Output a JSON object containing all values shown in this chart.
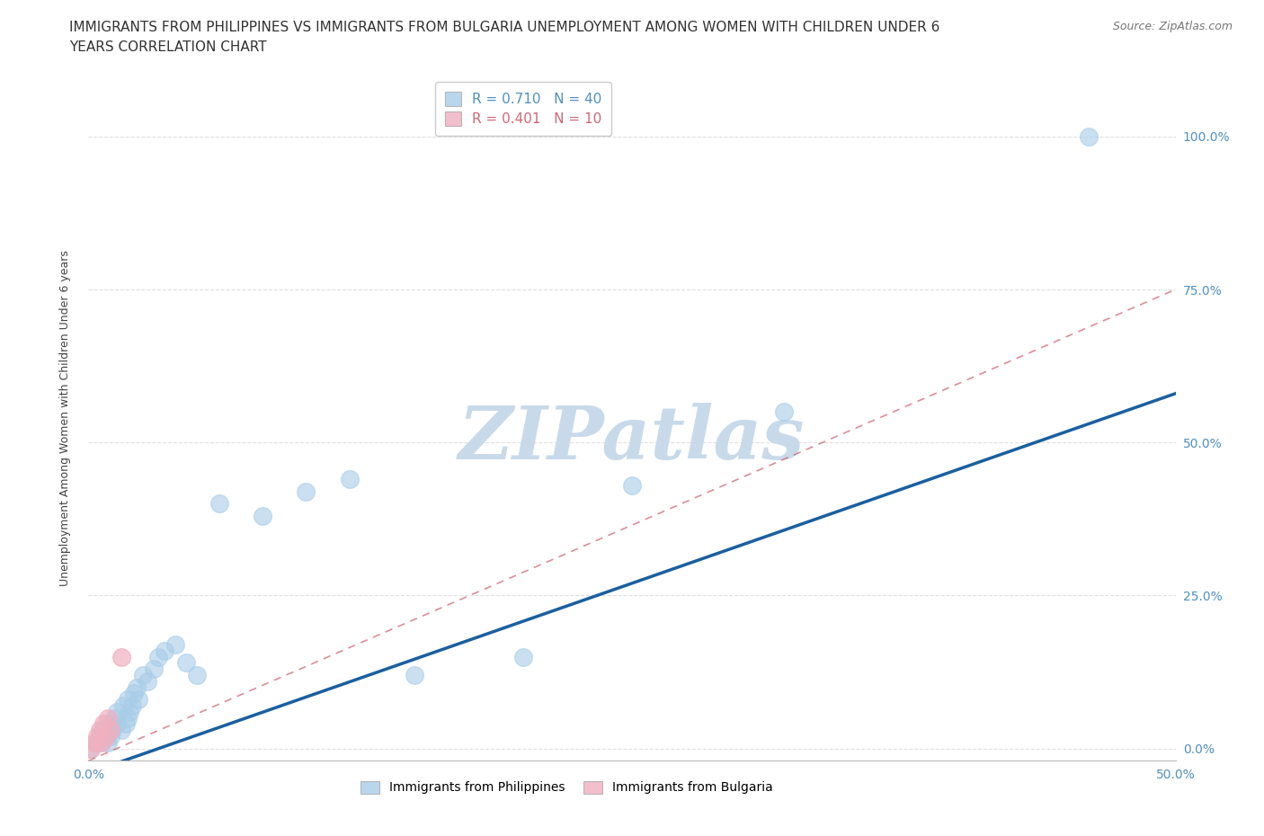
{
  "title_line1": "IMMIGRANTS FROM PHILIPPINES VS IMMIGRANTS FROM BULGARIA UNEMPLOYMENT AMONG WOMEN WITH CHILDREN UNDER 6",
  "title_line2": "YEARS CORRELATION CHART",
  "source": "Source: ZipAtlas.com",
  "ylabel": "Unemployment Among Women with Children Under 6 years",
  "xlim": [
    0,
    0.5
  ],
  "ylim": [
    -0.02,
    1.1
  ],
  "yticks": [
    0,
    0.25,
    0.5,
    0.75,
    1.0
  ],
  "ytick_labels": [
    "0.0%",
    "25.0%",
    "50.0%",
    "75.0%",
    "100.0%"
  ],
  "xticks": [
    0,
    0.1,
    0.2,
    0.3,
    0.4,
    0.5
  ],
  "xtick_labels": [
    "0.0%",
    "",
    "",
    "",
    "",
    "50.0%"
  ],
  "R_philippines": 0.71,
  "N_philippines": 40,
  "R_bulgaria": 0.401,
  "N_bulgaria": 10,
  "philippines_color": "#a8cce8",
  "bulgaria_color": "#f0b0c0",
  "philippines_line_color": "#1a5fa0",
  "bulgaria_line_color": "#d06878",
  "background_color": "#ffffff",
  "grid_color": "#dddddd",
  "watermark": "ZIPatlas",
  "watermark_color": "#c8daea",
  "philippines_x": [
    0.001,
    0.003,
    0.005,
    0.006,
    0.007,
    0.008,
    0.009,
    0.01,
    0.01,
    0.011,
    0.012,
    0.013,
    0.013,
    0.015,
    0.016,
    0.017,
    0.018,
    0.018,
    0.019,
    0.02,
    0.021,
    0.022,
    0.023,
    0.025,
    0.027,
    0.03,
    0.032,
    0.035,
    0.04,
    0.045,
    0.05,
    0.06,
    0.08,
    0.1,
    0.12,
    0.15,
    0.2,
    0.25,
    0.32,
    0.46
  ],
  "philippines_y": [
    0.0,
    0.01,
    0.02,
    0.01,
    0.03,
    0.02,
    0.01,
    0.04,
    0.02,
    0.03,
    0.05,
    0.04,
    0.06,
    0.03,
    0.07,
    0.04,
    0.05,
    0.08,
    0.06,
    0.07,
    0.09,
    0.1,
    0.08,
    0.12,
    0.11,
    0.13,
    0.15,
    0.16,
    0.17,
    0.14,
    0.12,
    0.4,
    0.38,
    0.42,
    0.44,
    0.12,
    0.15,
    0.43,
    0.55,
    1.0
  ],
  "bulgaria_x": [
    0.001,
    0.003,
    0.004,
    0.005,
    0.006,
    0.007,
    0.008,
    0.009,
    0.01,
    0.015
  ],
  "bulgaria_y": [
    0.0,
    0.01,
    0.02,
    0.03,
    0.01,
    0.04,
    0.02,
    0.05,
    0.03,
    0.15
  ],
  "philippines_line_x0": 0.0,
  "philippines_line_y0": -0.04,
  "philippines_line_x1": 0.5,
  "philippines_line_y1": 0.58,
  "bulgaria_line_x0": 0.0,
  "bulgaria_line_y0": -0.02,
  "bulgaria_line_x1": 0.5,
  "bulgaria_line_y1": 0.75,
  "title_fontsize": 11,
  "axis_label_fontsize": 9,
  "tick_fontsize": 10,
  "legend_fontsize": 11,
  "dot_size": 200
}
